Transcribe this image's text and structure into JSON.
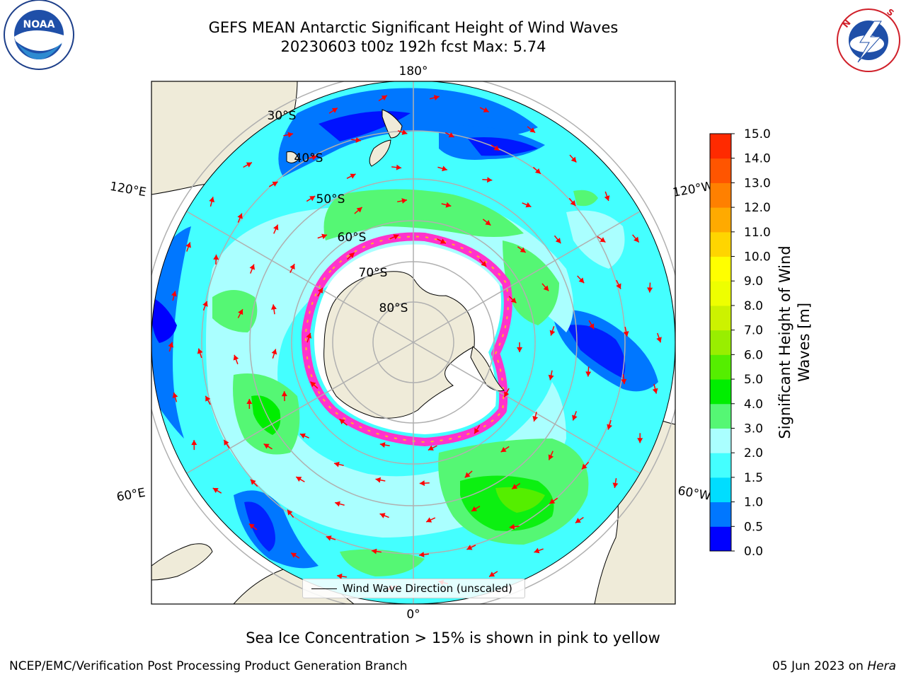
{
  "title": {
    "line1": "GEFS MEAN Antarctic Significant Height of Wind Waves",
    "line2": "20230603 t00z 192h fcst   Max: 5.74"
  },
  "map": {
    "projection": "south-polar-stereographic",
    "longitude_labels": {
      "top": "180°",
      "bottom": "0°",
      "upper_left": "120°E",
      "lower_left": "60°E",
      "upper_right": "120°W",
      "lower_right": "60°W"
    },
    "latitude_labels": [
      "30°S",
      "40°S",
      "50°S",
      "60°S",
      "70°S",
      "80°S"
    ],
    "legend": {
      "label": "Wind Wave Direction (unscaled)"
    },
    "arrow_color": "#ff0000",
    "land_color": "#efebd9",
    "sea_ice_color": "#ff33cc"
  },
  "colorbar": {
    "label": "Significant Height of Wind Waves [m]",
    "title_line1": "Significant Height of Wind",
    "title_line2": "Waves [m]",
    "ticks": [
      "0.0",
      "0.5",
      "1.0",
      "1.5",
      "2.0",
      "3.0",
      "4.0",
      "5.0",
      "6.0",
      "7.0",
      "8.0",
      "9.0",
      "10.0",
      "11.0",
      "12.0",
      "13.0",
      "14.0",
      "15.0"
    ],
    "colors": [
      "#0000ff",
      "#0077ff",
      "#00ddff",
      "#44ffff",
      "#aaffff",
      "#55f774",
      "#00ee00",
      "#55ee00",
      "#99ee00",
      "#ccf200",
      "#eeff00",
      "#ffff00",
      "#ffd500",
      "#ffaa00",
      "#ff8000",
      "#ff5500",
      "#ff2a00"
    ]
  },
  "caption": "Sea Ice Concentration > 15% is shown in pink to yellow",
  "footer": {
    "left": "NCEP/EMC/Verification Post Processing Product Generation Branch",
    "right_prefix": "05 Jun 2023 on ",
    "right_host": "Hera"
  },
  "logos": {
    "left": "NOAA",
    "left_ring": "NATIONAL OCEANIC AND ATMOSPHERIC ADMINISTRATION · U.S. DEPARTMENT OF COMMERCE",
    "right_ring": "NATIONAL WEATHER SERVICE"
  }
}
